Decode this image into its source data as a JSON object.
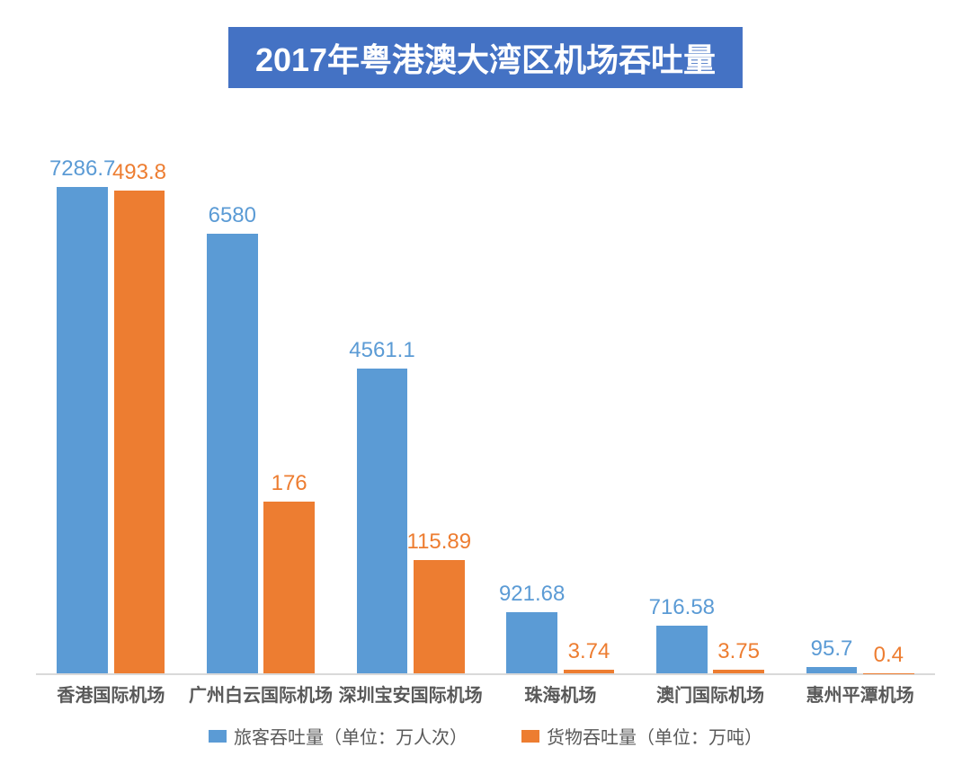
{
  "chart": {
    "type": "bar",
    "title": "2017年粤港澳大湾区机场吞吐量",
    "title_bg": "#4472c4",
    "title_color": "#ffffff",
    "title_fontsize": 36,
    "title_fontweight": "bold",
    "axis_color": "#d9d9d9",
    "background_color": "#ffffff",
    "cat_label_fontsize": 20,
    "cat_label_color": "#595959",
    "bar_label_fontsize": 24,
    "bar_label_fontweight": "normal",
    "bar_width_ratio": 0.34,
    "bar_gap_ratio": 0.04,
    "series": [
      {
        "name": "旅客吞吐量（单位：万人次）",
        "color": "#5b9bd5",
        "label_color": "#5b9bd5",
        "key": "passengers",
        "scale_max": 8200
      },
      {
        "name": "货物吞吐量（单位：万吨）",
        "color": "#ed7d31",
        "label_color": "#ed7d31",
        "key": "cargo",
        "scale_max": 560
      }
    ],
    "categories": [
      {
        "label": "香港国际机场",
        "passengers": 7286.7,
        "cargo": 493.8
      },
      {
        "label": "广州白云国际机场",
        "passengers": 6580,
        "cargo": 176
      },
      {
        "label": "深圳宝安国际机场",
        "passengers": 4561.1,
        "cargo": 115.89
      },
      {
        "label": "珠海机场",
        "passengers": 921.68,
        "cargo": 3.74
      },
      {
        "label": "澳门国际机场",
        "passengers": 716.58,
        "cargo": 3.75
      },
      {
        "label": "惠州平潭机场",
        "passengers": 95.7,
        "cargo": 0.4
      }
    ],
    "legend_fontsize": 20,
    "legend_color": "#595959"
  }
}
